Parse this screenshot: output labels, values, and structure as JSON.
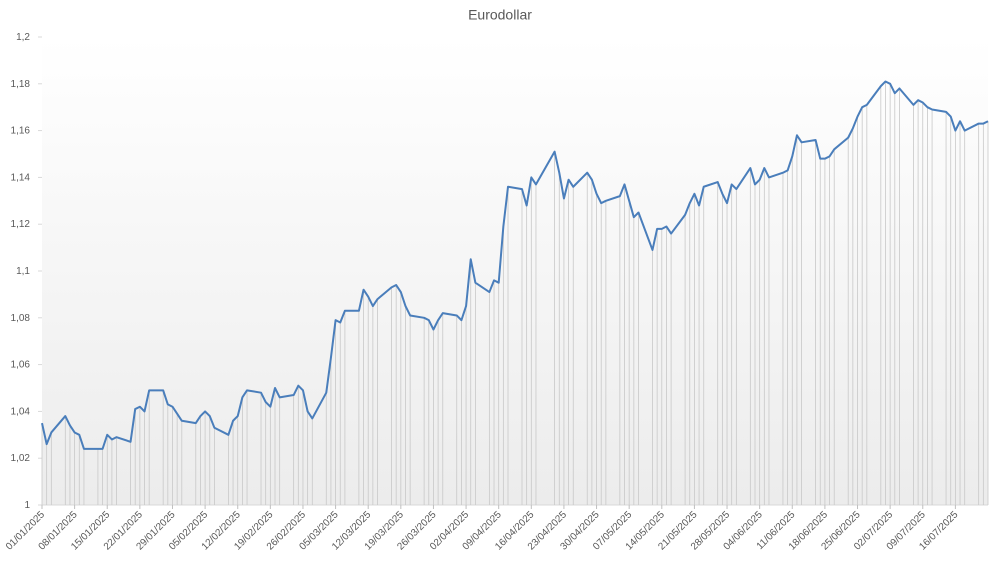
{
  "chart_data": {
    "type": "line",
    "title": "Eurodollar",
    "x": [
      "01/01/2025",
      "02/01/2025",
      "03/01/2025",
      "06/01/2025",
      "07/01/2025",
      "08/01/2025",
      "09/01/2025",
      "10/01/2025",
      "13/01/2025",
      "14/01/2025",
      "15/01/2025",
      "16/01/2025",
      "17/01/2025",
      "20/01/2025",
      "21/01/2025",
      "22/01/2025",
      "23/01/2025",
      "24/01/2025",
      "27/01/2025",
      "28/01/2025",
      "29/01/2025",
      "30/01/2025",
      "31/01/2025",
      "03/02/2025",
      "04/02/2025",
      "05/02/2025",
      "06/02/2025",
      "07/02/2025",
      "10/02/2025",
      "11/02/2025",
      "12/02/2025",
      "13/02/2025",
      "14/02/2025",
      "17/02/2025",
      "18/02/2025",
      "19/02/2025",
      "20/02/2025",
      "21/02/2025",
      "24/02/2025",
      "25/02/2025",
      "26/02/2025",
      "27/02/2025",
      "28/02/2025",
      "03/03/2025",
      "04/03/2025",
      "05/03/2025",
      "06/03/2025",
      "07/03/2025",
      "10/03/2025",
      "11/03/2025",
      "12/03/2025",
      "13/03/2025",
      "14/03/2025",
      "17/03/2025",
      "18/03/2025",
      "19/03/2025",
      "20/03/2025",
      "21/03/2025",
      "24/03/2025",
      "25/03/2025",
      "26/03/2025",
      "27/03/2025",
      "28/03/2025",
      "31/03/2025",
      "01/04/2025",
      "02/04/2025",
      "03/04/2025",
      "04/04/2025",
      "07/04/2025",
      "08/04/2025",
      "09/04/2025",
      "10/04/2025",
      "11/04/2025",
      "14/04/2025",
      "15/04/2025",
      "16/04/2025",
      "17/04/2025",
      "21/04/2025",
      "22/04/2025",
      "23/04/2025",
      "24/04/2025",
      "25/04/2025",
      "28/04/2025",
      "29/04/2025",
      "30/04/2025",
      "01/05/2025",
      "02/05/2025",
      "05/05/2025",
      "06/05/2025",
      "07/05/2025",
      "08/05/2025",
      "09/05/2025",
      "12/05/2025",
      "13/05/2025",
      "14/05/2025",
      "15/05/2025",
      "16/05/2025",
      "19/05/2025",
      "20/05/2025",
      "21/05/2025",
      "22/05/2025",
      "23/05/2025",
      "26/05/2025",
      "27/05/2025",
      "28/05/2025",
      "29/05/2025",
      "30/05/2025",
      "02/06/2025",
      "03/06/2025",
      "04/06/2025",
      "05/06/2025",
      "06/06/2025",
      "09/06/2025",
      "10/06/2025",
      "11/06/2025",
      "12/06/2025",
      "13/06/2025",
      "16/06/2025",
      "17/06/2025",
      "18/06/2025",
      "19/06/2025",
      "20/06/2025",
      "23/06/2025",
      "24/06/2025",
      "25/06/2025",
      "26/06/2025",
      "27/06/2025",
      "30/06/2025",
      "01/07/2025",
      "02/07/2025",
      "03/07/2025",
      "04/07/2025",
      "07/07/2025",
      "08/07/2025",
      "09/07/2025",
      "10/07/2025",
      "11/07/2025",
      "14/07/2025",
      "15/07/2025",
      "16/07/2025",
      "17/07/2025",
      "18/07/2025",
      "21/07/2025",
      "22/07/2025",
      "23/07/2025"
    ],
    "series": [
      {
        "name": "Eurodollar",
        "color": "#4a7ebb",
        "values": [
          1.035,
          1.026,
          1.031,
          1.038,
          1.034,
          1.031,
          1.03,
          1.024,
          1.024,
          1.024,
          1.03,
          1.028,
          1.029,
          1.027,
          1.041,
          1.042,
          1.04,
          1.049,
          1.049,
          1.043,
          1.042,
          1.039,
          1.036,
          1.035,
          1.038,
          1.04,
          1.038,
          1.033,
          1.03,
          1.036,
          1.038,
          1.046,
          1.049,
          1.048,
          1.044,
          1.042,
          1.05,
          1.046,
          1.047,
          1.051,
          1.049,
          1.04,
          1.037,
          1.048,
          1.063,
          1.079,
          1.078,
          1.083,
          1.083,
          1.092,
          1.089,
          1.085,
          1.088,
          1.093,
          1.094,
          1.091,
          1.085,
          1.081,
          1.08,
          1.079,
          1.075,
          1.079,
          1.082,
          1.081,
          1.079,
          1.085,
          1.105,
          1.095,
          1.091,
          1.096,
          1.095,
          1.119,
          1.136,
          1.135,
          1.128,
          1.14,
          1.137,
          1.151,
          1.142,
          1.131,
          1.139,
          1.136,
          1.142,
          1.139,
          1.133,
          1.129,
          1.13,
          1.132,
          1.137,
          1.13,
          1.123,
          1.125,
          1.109,
          1.118,
          1.118,
          1.119,
          1.116,
          1.124,
          1.129,
          1.133,
          1.128,
          1.136,
          1.138,
          1.133,
          1.129,
          1.137,
          1.135,
          1.144,
          1.137,
          1.139,
          1.144,
          1.14,
          1.142,
          1.143,
          1.149,
          1.158,
          1.155,
          1.156,
          1.148,
          1.148,
          1.149,
          1.152,
          1.157,
          1.161,
          1.166,
          1.17,
          1.171,
          1.179,
          1.181,
          1.18,
          1.176,
          1.178,
          1.171,
          1.173,
          1.172,
          1.17,
          1.169,
          1.168,
          1.166,
          1.16,
          1.164,
          1.16,
          1.163,
          1.163,
          1.164
        ]
      }
    ],
    "xlim": [
      "01/01/2025",
      "23/07/2025"
    ],
    "xticks": [
      "01/01/2025",
      "08/01/2025",
      "15/01/2025",
      "22/01/2025",
      "29/01/2025",
      "05/02/2025",
      "12/02/2025",
      "19/02/2025",
      "26/02/2025",
      "05/03/2025",
      "12/03/2025",
      "19/03/2025",
      "26/03/2025",
      "02/04/2025",
      "09/04/2025",
      "16/04/2025",
      "23/04/2025",
      "30/04/2025",
      "07/05/2025",
      "14/05/2025",
      "21/05/2025",
      "28/05/2025",
      "04/06/2025",
      "11/06/2025",
      "18/06/2025",
      "25/06/2025",
      "02/07/2025",
      "09/07/2025",
      "16/07/2025"
    ],
    "ylim": [
      1,
      1.2
    ],
    "yticks": [
      1,
      {
        "value": 1.02,
        "label": "1,02"
      },
      {
        "value": 1.04,
        "label": "1,04"
      },
      {
        "value": 1.06,
        "label": "1,06"
      },
      {
        "value": 1.08,
        "label": "1,08"
      },
      {
        "value": 1.1,
        "label": "1,1"
      },
      {
        "value": 1.12,
        "label": "1,12"
      },
      {
        "value": 1.14,
        "label": "1,14"
      },
      {
        "value": 1.16,
        "label": "1,16"
      },
      {
        "value": 1.18,
        "label": "1,18"
      },
      {
        "value": 1.2,
        "label": "1,2"
      }
    ],
    "drop_lines": true
  }
}
